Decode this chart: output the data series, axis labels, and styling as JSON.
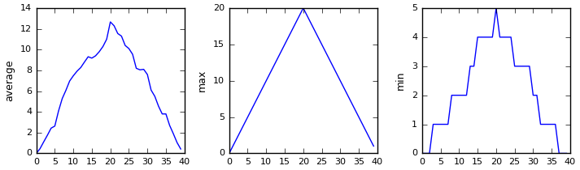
{
  "avg": [
    0.0,
    0.45,
    1.11,
    1.75,
    2.43,
    2.63,
    4.08,
    5.28,
    6.08,
    6.97,
    7.48,
    7.92,
    8.27,
    8.8,
    9.31,
    9.18,
    9.4,
    9.8,
    10.3,
    11.0,
    12.67,
    12.3,
    11.55,
    11.3,
    10.4,
    10.1,
    9.55,
    8.2,
    8.05,
    8.1,
    7.6,
    6.1,
    5.5,
    4.55,
    3.8,
    3.8,
    2.7,
    1.9,
    1.05,
    0.42
  ],
  "max_vals": [
    0,
    1,
    2,
    3,
    4,
    5,
    6,
    7,
    8,
    9,
    10,
    11,
    12,
    13,
    14,
    15,
    16,
    17,
    18,
    19,
    20,
    19,
    18,
    17,
    16,
    15,
    14,
    13,
    12,
    11,
    10,
    9,
    8,
    7,
    6,
    5,
    4,
    3,
    2,
    1
  ],
  "min_vals": [
    0,
    0,
    0,
    1,
    1,
    1,
    1,
    1,
    2,
    2,
    2,
    2,
    2,
    3,
    3,
    4,
    4,
    4,
    4,
    4,
    5,
    4,
    4,
    4,
    4,
    3,
    3,
    3,
    3,
    3,
    2,
    2,
    1,
    1,
    1,
    1,
    1,
    0,
    0,
    0
  ],
  "line_color": "#0000ff",
  "ylabel_avg": "average",
  "ylabel_max": "max",
  "ylabel_min": "min",
  "xlim": [
    0,
    40
  ],
  "avg_ylim": [
    0,
    14
  ],
  "max_ylim": [
    0,
    20
  ],
  "min_ylim": [
    0,
    5
  ],
  "xticks": [
    0,
    5,
    10,
    15,
    20,
    25,
    30,
    35,
    40
  ],
  "figsize": [
    7.13,
    2.1
  ],
  "dpi": 100
}
